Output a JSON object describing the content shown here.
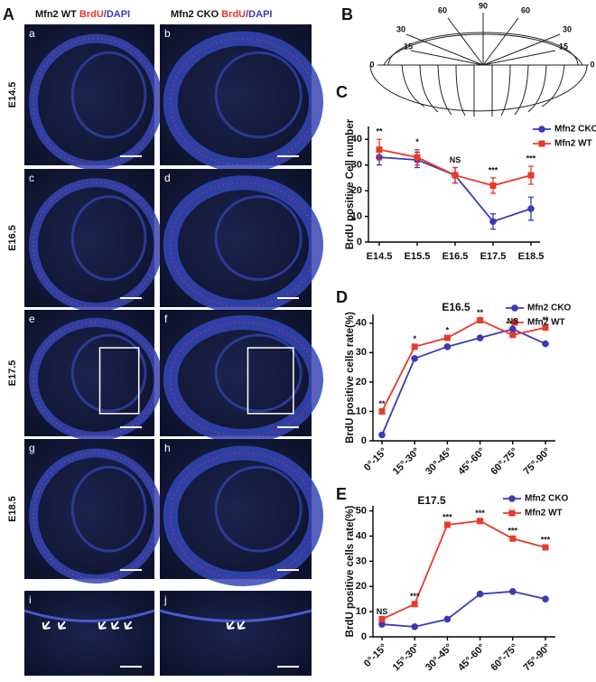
{
  "panel_a": {
    "letter": "A",
    "columns": [
      {
        "genotype": "Mfn2 WT",
        "stain1": "BrdU",
        "stain2": "/DAPI"
      },
      {
        "genotype": "Mfn2 CKO",
        "stain1": "BrdU",
        "stain2": "/DAPI"
      }
    ],
    "rows": [
      "E14.5",
      "E16.5",
      "E17.5",
      "E18.5"
    ],
    "images": [
      "a",
      "b",
      "c",
      "d",
      "e",
      "f",
      "g",
      "h",
      "i",
      "j"
    ]
  },
  "panel_b": {
    "letter": "B",
    "angles": [
      90,
      60,
      60,
      30,
      30,
      15,
      15,
      0,
      0
    ]
  },
  "chart_data": [
    {
      "type": "line",
      "letter": "C",
      "y_label": "BrdU positive Cell number",
      "categories": [
        "E14.5",
        "E15.5",
        "E16.5",
        "E17.5",
        "E18.5"
      ],
      "series": [
        {
          "name": "Mfn2 CKO",
          "color": "#3b3bb5",
          "marker": "circle",
          "values": [
            33,
            32,
            26,
            8,
            13
          ],
          "errors": [
            3,
            3,
            3,
            3,
            4.5
          ]
        },
        {
          "name": "Mfn2 WT",
          "color": "#e8392a",
          "marker": "square",
          "values": [
            36,
            33,
            26,
            22,
            26
          ],
          "errors": [
            4,
            3,
            3,
            3,
            3.5
          ]
        }
      ],
      "annotations": [
        "**",
        "*",
        "NS",
        "***",
        "***"
      ],
      "ylim": [
        0,
        45
      ],
      "yticks": [
        0,
        10,
        20,
        30,
        40
      ]
    },
    {
      "type": "line",
      "letter": "D",
      "title": "E16.5",
      "y_label": "BrdU positive cells rate(%)",
      "categories": [
        "0°-15°",
        "15°-30°",
        "30°-45°",
        "45°-60°",
        "60°-75°",
        "75°-90°"
      ],
      "series": [
        {
          "name": "Mfn2 CKO",
          "color": "#3b3bb5",
          "marker": "circle",
          "values": [
            2,
            28,
            32,
            35,
            38,
            33
          ]
        },
        {
          "name": "Mfn2 WT",
          "color": "#e8392a",
          "marker": "square",
          "values": [
            10,
            32,
            35,
            41,
            36,
            38.5
          ]
        }
      ],
      "annotations": [
        "**",
        "*",
        "*",
        "**",
        "NS",
        "**"
      ],
      "ylim": [
        0,
        43
      ],
      "yticks": [
        0,
        10,
        20,
        30,
        40
      ]
    },
    {
      "type": "line",
      "letter": "E",
      "title": "E17.5",
      "y_label": "BrdU positive cells rate(%)",
      "categories": [
        "0°-15°",
        "15°-30°",
        "30°-45°",
        "45°-60°",
        "60°-75°",
        "75°-90°"
      ],
      "series": [
        {
          "name": "Mfn2 CKO",
          "color": "#3b3bb5",
          "marker": "circle",
          "values": [
            5,
            4,
            7,
            17,
            18,
            15
          ]
        },
        {
          "name": "Mfn2 WT",
          "color": "#e8392a",
          "marker": "square",
          "values": [
            7,
            13,
            44.5,
            46,
            39,
            35.5
          ]
        }
      ],
      "annotations": [
        "NS",
        "***",
        "***",
        "***",
        "***",
        "***"
      ],
      "ylim": [
        0,
        52
      ],
      "yticks": [
        0,
        10,
        20,
        30,
        40,
        50
      ]
    }
  ]
}
